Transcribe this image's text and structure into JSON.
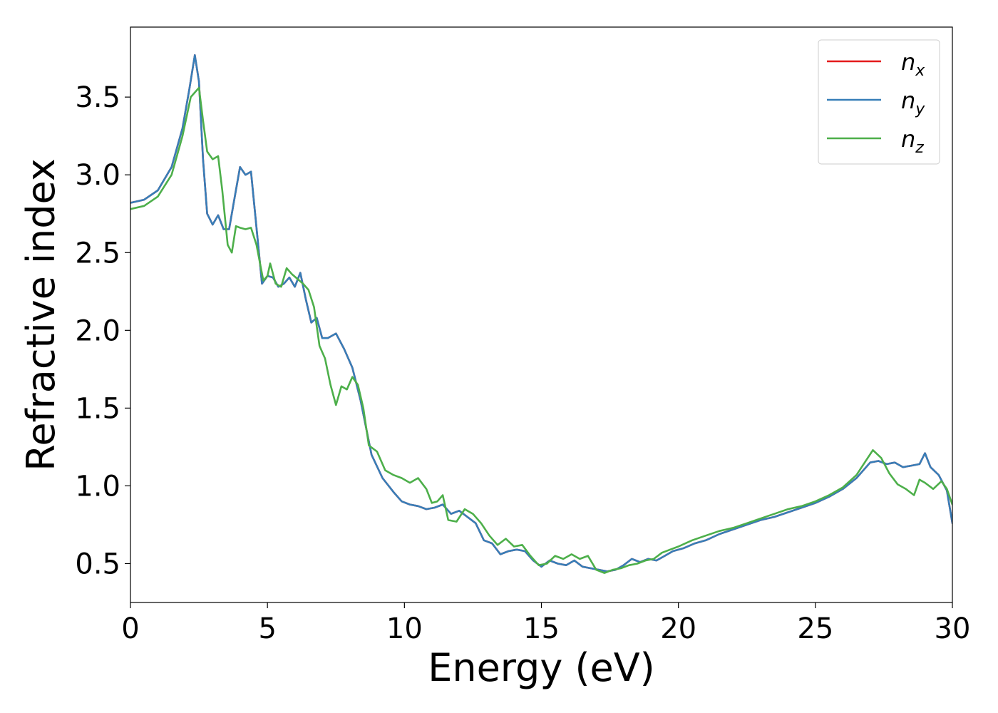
{
  "chart_data": {
    "type": "line",
    "title": "",
    "xlabel": "Energy (eV)",
    "ylabel": "Refractive index",
    "xlim": [
      0,
      30
    ],
    "ylim": [
      0.25,
      3.95
    ],
    "xticks": [
      0,
      5,
      10,
      15,
      20,
      25,
      30
    ],
    "xtick_labels": [
      "0",
      "5",
      "10",
      "15",
      "20",
      "25",
      "30"
    ],
    "yticks": [
      0.5,
      1.0,
      1.5,
      2.0,
      2.5,
      3.0,
      3.5
    ],
    "ytick_labels": [
      "0.5",
      "1.0",
      "1.5",
      "2.0",
      "2.5",
      "3.0",
      "3.5"
    ],
    "grid": false,
    "legend_position": "top-right",
    "series": [
      {
        "name": "n",
        "subscript": "x",
        "color": "#e41a1c",
        "points": [
          [
            0,
            2.82
          ],
          [
            0.5,
            2.84
          ],
          [
            1.0,
            2.9
          ],
          [
            1.5,
            3.05
          ],
          [
            1.9,
            3.3
          ],
          [
            2.15,
            3.55
          ],
          [
            2.35,
            3.77
          ],
          [
            2.5,
            3.6
          ],
          [
            2.65,
            3.1
          ],
          [
            2.8,
            2.75
          ],
          [
            3.0,
            2.68
          ],
          [
            3.2,
            2.74
          ],
          [
            3.4,
            2.65
          ],
          [
            3.6,
            2.65
          ],
          [
            3.8,
            2.85
          ],
          [
            4.0,
            3.05
          ],
          [
            4.2,
            3.0
          ],
          [
            4.4,
            3.02
          ],
          [
            4.55,
            2.75
          ],
          [
            4.8,
            2.3
          ],
          [
            5.0,
            2.35
          ],
          [
            5.2,
            2.34
          ],
          [
            5.4,
            2.28
          ],
          [
            5.6,
            2.3
          ],
          [
            5.8,
            2.34
          ],
          [
            6.0,
            2.28
          ],
          [
            6.2,
            2.37
          ],
          [
            6.4,
            2.2
          ],
          [
            6.6,
            2.05
          ],
          [
            6.8,
            2.08
          ],
          [
            7.0,
            1.95
          ],
          [
            7.2,
            1.95
          ],
          [
            7.5,
            1.98
          ],
          [
            7.8,
            1.88
          ],
          [
            8.1,
            1.76
          ],
          [
            8.4,
            1.55
          ],
          [
            8.8,
            1.2
          ],
          [
            9.2,
            1.05
          ],
          [
            9.6,
            0.96
          ],
          [
            9.9,
            0.9
          ],
          [
            10.2,
            0.88
          ],
          [
            10.5,
            0.87
          ],
          [
            10.8,
            0.85
          ],
          [
            11.1,
            0.86
          ],
          [
            11.4,
            0.88
          ],
          [
            11.7,
            0.82
          ],
          [
            12.0,
            0.84
          ],
          [
            12.3,
            0.8
          ],
          [
            12.6,
            0.76
          ],
          [
            12.9,
            0.65
          ],
          [
            13.2,
            0.63
          ],
          [
            13.5,
            0.56
          ],
          [
            13.8,
            0.58
          ],
          [
            14.1,
            0.59
          ],
          [
            14.4,
            0.58
          ],
          [
            14.7,
            0.52
          ],
          [
            15.0,
            0.48
          ],
          [
            15.3,
            0.52
          ],
          [
            15.6,
            0.5
          ],
          [
            15.9,
            0.49
          ],
          [
            16.2,
            0.52
          ],
          [
            16.5,
            0.48
          ],
          [
            16.8,
            0.47
          ],
          [
            17.1,
            0.46
          ],
          [
            17.4,
            0.45
          ],
          [
            17.7,
            0.46
          ],
          [
            18.0,
            0.49
          ],
          [
            18.3,
            0.53
          ],
          [
            18.6,
            0.51
          ],
          [
            18.9,
            0.53
          ],
          [
            19.2,
            0.52
          ],
          [
            19.5,
            0.55
          ],
          [
            19.8,
            0.58
          ],
          [
            20.2,
            0.6
          ],
          [
            20.6,
            0.63
          ],
          [
            21.0,
            0.65
          ],
          [
            21.5,
            0.69
          ],
          [
            22.0,
            0.72
          ],
          [
            22.5,
            0.75
          ],
          [
            23.0,
            0.78
          ],
          [
            23.5,
            0.8
          ],
          [
            24.0,
            0.83
          ],
          [
            24.5,
            0.86
          ],
          [
            25.0,
            0.89
          ],
          [
            25.5,
            0.93
          ],
          [
            26.0,
            0.98
          ],
          [
            26.5,
            1.05
          ],
          [
            27.0,
            1.15
          ],
          [
            27.3,
            1.16
          ],
          [
            27.6,
            1.14
          ],
          [
            27.9,
            1.15
          ],
          [
            28.2,
            1.12
          ],
          [
            28.5,
            1.13
          ],
          [
            28.8,
            1.14
          ],
          [
            29.0,
            1.21
          ],
          [
            29.2,
            1.12
          ],
          [
            29.5,
            1.07
          ],
          [
            29.8,
            0.97
          ],
          [
            30.0,
            0.76
          ]
        ]
      },
      {
        "name": "n",
        "subscript": "y",
        "color": "#377eb8",
        "points": [
          [
            0,
            2.82
          ],
          [
            0.5,
            2.84
          ],
          [
            1.0,
            2.9
          ],
          [
            1.5,
            3.05
          ],
          [
            1.9,
            3.3
          ],
          [
            2.15,
            3.55
          ],
          [
            2.35,
            3.77
          ],
          [
            2.5,
            3.6
          ],
          [
            2.65,
            3.1
          ],
          [
            2.8,
            2.75
          ],
          [
            3.0,
            2.68
          ],
          [
            3.2,
            2.74
          ],
          [
            3.4,
            2.65
          ],
          [
            3.6,
            2.65
          ],
          [
            3.8,
            2.85
          ],
          [
            4.0,
            3.05
          ],
          [
            4.2,
            3.0
          ],
          [
            4.4,
            3.02
          ],
          [
            4.55,
            2.75
          ],
          [
            4.8,
            2.3
          ],
          [
            5.0,
            2.35
          ],
          [
            5.2,
            2.34
          ],
          [
            5.4,
            2.28
          ],
          [
            5.6,
            2.3
          ],
          [
            5.8,
            2.34
          ],
          [
            6.0,
            2.28
          ],
          [
            6.2,
            2.37
          ],
          [
            6.4,
            2.2
          ],
          [
            6.6,
            2.05
          ],
          [
            6.8,
            2.08
          ],
          [
            7.0,
            1.95
          ],
          [
            7.2,
            1.95
          ],
          [
            7.5,
            1.98
          ],
          [
            7.8,
            1.88
          ],
          [
            8.1,
            1.76
          ],
          [
            8.4,
            1.55
          ],
          [
            8.8,
            1.2
          ],
          [
            9.2,
            1.05
          ],
          [
            9.6,
            0.96
          ],
          [
            9.9,
            0.9
          ],
          [
            10.2,
            0.88
          ],
          [
            10.5,
            0.87
          ],
          [
            10.8,
            0.85
          ],
          [
            11.1,
            0.86
          ],
          [
            11.4,
            0.88
          ],
          [
            11.7,
            0.82
          ],
          [
            12.0,
            0.84
          ],
          [
            12.3,
            0.8
          ],
          [
            12.6,
            0.76
          ],
          [
            12.9,
            0.65
          ],
          [
            13.2,
            0.63
          ],
          [
            13.5,
            0.56
          ],
          [
            13.8,
            0.58
          ],
          [
            14.1,
            0.59
          ],
          [
            14.4,
            0.58
          ],
          [
            14.7,
            0.52
          ],
          [
            15.0,
            0.48
          ],
          [
            15.3,
            0.52
          ],
          [
            15.6,
            0.5
          ],
          [
            15.9,
            0.49
          ],
          [
            16.2,
            0.52
          ],
          [
            16.5,
            0.48
          ],
          [
            16.8,
            0.47
          ],
          [
            17.1,
            0.46
          ],
          [
            17.4,
            0.45
          ],
          [
            17.7,
            0.46
          ],
          [
            18.0,
            0.49
          ],
          [
            18.3,
            0.53
          ],
          [
            18.6,
            0.51
          ],
          [
            18.9,
            0.53
          ],
          [
            19.2,
            0.52
          ],
          [
            19.5,
            0.55
          ],
          [
            19.8,
            0.58
          ],
          [
            20.2,
            0.6
          ],
          [
            20.6,
            0.63
          ],
          [
            21.0,
            0.65
          ],
          [
            21.5,
            0.69
          ],
          [
            22.0,
            0.72
          ],
          [
            22.5,
            0.75
          ],
          [
            23.0,
            0.78
          ],
          [
            23.5,
            0.8
          ],
          [
            24.0,
            0.83
          ],
          [
            24.5,
            0.86
          ],
          [
            25.0,
            0.89
          ],
          [
            25.5,
            0.93
          ],
          [
            26.0,
            0.98
          ],
          [
            26.5,
            1.05
          ],
          [
            27.0,
            1.15
          ],
          [
            27.3,
            1.16
          ],
          [
            27.6,
            1.14
          ],
          [
            27.9,
            1.15
          ],
          [
            28.2,
            1.12
          ],
          [
            28.5,
            1.13
          ],
          [
            28.8,
            1.14
          ],
          [
            29.0,
            1.21
          ],
          [
            29.2,
            1.12
          ],
          [
            29.5,
            1.07
          ],
          [
            29.8,
            0.97
          ],
          [
            30.0,
            0.76
          ]
        ]
      },
      {
        "name": "n",
        "subscript": "z",
        "color": "#4daf4a",
        "points": [
          [
            0,
            2.78
          ],
          [
            0.5,
            2.8
          ],
          [
            1.0,
            2.86
          ],
          [
            1.5,
            3.0
          ],
          [
            1.9,
            3.25
          ],
          [
            2.2,
            3.5
          ],
          [
            2.5,
            3.56
          ],
          [
            2.65,
            3.35
          ],
          [
            2.8,
            3.15
          ],
          [
            3.0,
            3.1
          ],
          [
            3.2,
            3.12
          ],
          [
            3.35,
            2.9
          ],
          [
            3.55,
            2.55
          ],
          [
            3.7,
            2.5
          ],
          [
            3.85,
            2.67
          ],
          [
            4.0,
            2.66
          ],
          [
            4.2,
            2.65
          ],
          [
            4.4,
            2.66
          ],
          [
            4.6,
            2.55
          ],
          [
            4.85,
            2.32
          ],
          [
            5.0,
            2.35
          ],
          [
            5.1,
            2.43
          ],
          [
            5.3,
            2.3
          ],
          [
            5.5,
            2.28
          ],
          [
            5.7,
            2.4
          ],
          [
            5.9,
            2.36
          ],
          [
            6.1,
            2.33
          ],
          [
            6.3,
            2.3
          ],
          [
            6.5,
            2.26
          ],
          [
            6.7,
            2.15
          ],
          [
            6.9,
            1.9
          ],
          [
            7.1,
            1.82
          ],
          [
            7.3,
            1.65
          ],
          [
            7.5,
            1.52
          ],
          [
            7.7,
            1.64
          ],
          [
            7.9,
            1.62
          ],
          [
            8.1,
            1.7
          ],
          [
            8.3,
            1.65
          ],
          [
            8.5,
            1.5
          ],
          [
            8.7,
            1.26
          ],
          [
            9.0,
            1.22
          ],
          [
            9.3,
            1.1
          ],
          [
            9.6,
            1.07
          ],
          [
            9.9,
            1.05
          ],
          [
            10.2,
            1.02
          ],
          [
            10.5,
            1.05
          ],
          [
            10.8,
            0.98
          ],
          [
            11.0,
            0.89
          ],
          [
            11.2,
            0.9
          ],
          [
            11.4,
            0.94
          ],
          [
            11.6,
            0.78
          ],
          [
            11.9,
            0.77
          ],
          [
            12.2,
            0.85
          ],
          [
            12.5,
            0.82
          ],
          [
            12.8,
            0.76
          ],
          [
            13.1,
            0.68
          ],
          [
            13.4,
            0.62
          ],
          [
            13.7,
            0.66
          ],
          [
            14.0,
            0.61
          ],
          [
            14.3,
            0.62
          ],
          [
            14.6,
            0.55
          ],
          [
            14.9,
            0.49
          ],
          [
            15.2,
            0.5
          ],
          [
            15.5,
            0.55
          ],
          [
            15.8,
            0.53
          ],
          [
            16.1,
            0.56
          ],
          [
            16.4,
            0.53
          ],
          [
            16.7,
            0.55
          ],
          [
            17.0,
            0.46
          ],
          [
            17.3,
            0.44
          ],
          [
            17.6,
            0.46
          ],
          [
            17.9,
            0.47
          ],
          [
            18.2,
            0.49
          ],
          [
            18.5,
            0.5
          ],
          [
            18.8,
            0.52
          ],
          [
            19.1,
            0.53
          ],
          [
            19.4,
            0.57
          ],
          [
            19.7,
            0.59
          ],
          [
            20.0,
            0.61
          ],
          [
            20.5,
            0.65
          ],
          [
            21.0,
            0.68
          ],
          [
            21.5,
            0.71
          ],
          [
            22.0,
            0.73
          ],
          [
            22.5,
            0.76
          ],
          [
            23.0,
            0.79
          ],
          [
            23.5,
            0.82
          ],
          [
            24.0,
            0.85
          ],
          [
            24.5,
            0.87
          ],
          [
            25.0,
            0.9
          ],
          [
            25.5,
            0.94
          ],
          [
            26.0,
            0.99
          ],
          [
            26.5,
            1.07
          ],
          [
            26.8,
            1.15
          ],
          [
            27.1,
            1.23
          ],
          [
            27.4,
            1.18
          ],
          [
            27.7,
            1.08
          ],
          [
            28.0,
            1.01
          ],
          [
            28.3,
            0.98
          ],
          [
            28.6,
            0.94
          ],
          [
            28.8,
            1.04
          ],
          [
            29.0,
            1.02
          ],
          [
            29.3,
            0.98
          ],
          [
            29.6,
            1.03
          ],
          [
            29.8,
            0.98
          ],
          [
            30.0,
            0.88
          ]
        ]
      }
    ]
  }
}
